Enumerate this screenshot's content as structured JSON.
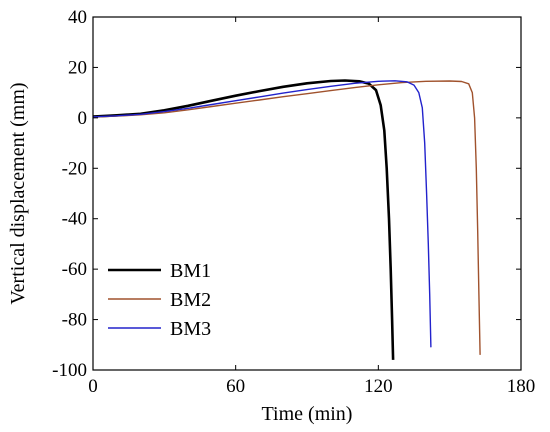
{
  "chart_data": {
    "type": "line",
    "xlabel": "Time (min)",
    "ylabel": "Vertical displacement (mm)",
    "xlim": [
      0,
      180
    ],
    "ylim": [
      -100,
      40
    ],
    "xticks": [
      0,
      60,
      120,
      180
    ],
    "yticks": [
      40,
      20,
      0,
      -20,
      -40,
      -60,
      -80,
      -100
    ],
    "grid": false,
    "legend_position": "bottom-left",
    "series": [
      {
        "name": "BM1",
        "color": "#000000",
        "x": [
          0,
          10,
          20,
          30,
          40,
          50,
          60,
          70,
          80,
          90,
          100,
          106,
          112,
          116,
          119,
          121,
          122.5,
          123.5,
          124.5,
          125.2,
          125.8,
          126.2
        ],
        "y": [
          0.5,
          1.0,
          1.6,
          3.0,
          4.8,
          6.8,
          8.8,
          10.6,
          12.3,
          13.7,
          14.6,
          14.8,
          14.5,
          13.6,
          11.0,
          5.0,
          -5,
          -20,
          -40,
          -60,
          -80,
          -96
        ]
      },
      {
        "name": "BM2",
        "color": "#a0522d",
        "x": [
          0,
          10,
          20,
          30,
          40,
          50,
          60,
          70,
          80,
          90,
          100,
          110,
          120,
          130,
          140,
          150,
          155,
          158,
          159.5,
          160.5,
          161.2,
          161.8,
          162.3,
          162.8
        ],
        "y": [
          0.3,
          0.7,
          1.2,
          2.0,
          3.2,
          4.5,
          5.8,
          7.1,
          8.4,
          9.6,
          10.8,
          12.0,
          13.1,
          14.0,
          14.5,
          14.6,
          14.4,
          13.5,
          10.0,
          0,
          -20,
          -45,
          -70,
          -94
        ]
      },
      {
        "name": "BM3",
        "color": "#2222cc",
        "x": [
          0,
          10,
          20,
          30,
          40,
          50,
          60,
          70,
          80,
          90,
          100,
          110,
          120,
          127,
          132,
          135,
          137,
          138.5,
          139.5,
          140.3,
          141,
          141.6,
          142.1
        ],
        "y": [
          0.4,
          0.8,
          1.4,
          2.5,
          3.8,
          5.3,
          6.8,
          8.3,
          9.8,
          11.2,
          12.5,
          13.7,
          14.5,
          14.7,
          14.3,
          13.0,
          10.0,
          4.0,
          -10,
          -30,
          -50,
          -70,
          -91
        ]
      }
    ]
  }
}
